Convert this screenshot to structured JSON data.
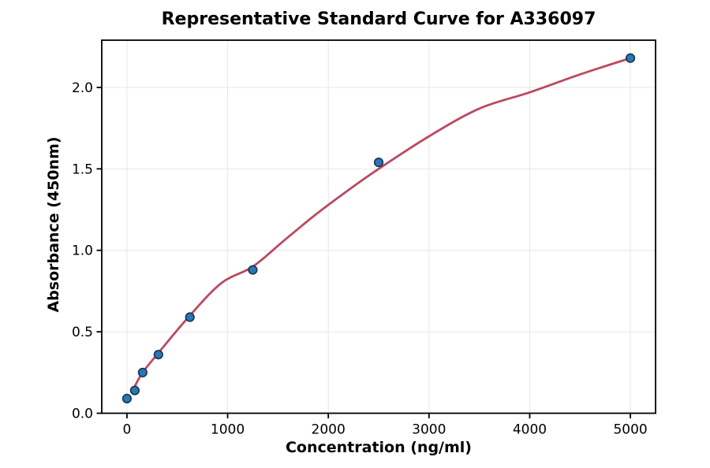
{
  "chart_data": {
    "type": "scatter",
    "title": "Representative Standard Curve for A336097",
    "xlabel": "Concentration (ng/ml)",
    "ylabel": "Absorbance (450nm)",
    "xlim": [
      -250,
      5250
    ],
    "ylim": [
      0,
      2.29
    ],
    "x_ticks": [
      0,
      1000,
      2000,
      3000,
      4000,
      5000
    ],
    "x_tick_labels": [
      "0",
      "1000",
      "2000",
      "3000",
      "4000",
      "5000"
    ],
    "y_ticks": [
      0,
      0.5,
      1,
      1.5,
      2
    ],
    "y_tick_labels": [
      "0.0",
      "0.5",
      "1.0",
      "1.5",
      "2.0"
    ],
    "grid": true,
    "legend": "none",
    "series": [
      {
        "name": "standard-points",
        "kind": "scatter",
        "points": [
          [
            0,
            0.09
          ],
          [
            78.1,
            0.14
          ],
          [
            156.2,
            0.25
          ],
          [
            312.5,
            0.36
          ],
          [
            625,
            0.59
          ],
          [
            1250,
            0.88
          ],
          [
            2500,
            1.54
          ],
          [
            5000,
            2.18
          ]
        ]
      },
      {
        "name": "fit-curve",
        "kind": "line",
        "points": [
          [
            78,
            0.165
          ],
          [
            156,
            0.25
          ],
          [
            312,
            0.37
          ],
          [
            625,
            0.6
          ],
          [
            940,
            0.8
          ],
          [
            1250,
            0.9
          ],
          [
            1560,
            1.06
          ],
          [
            1875,
            1.22
          ],
          [
            2200,
            1.37
          ],
          [
            2500,
            1.5
          ],
          [
            3000,
            1.7
          ],
          [
            3500,
            1.87
          ],
          [
            4000,
            1.97
          ],
          [
            4500,
            2.08
          ],
          [
            5000,
            2.18
          ]
        ]
      }
    ],
    "colors": {
      "marker_fill": "#2b77b3",
      "marker_edge": "#16324f",
      "curve": "#bb4a60",
      "grid": "#e7e7e7",
      "spine": "#000000",
      "text": "#000000",
      "background": "#ffffff"
    }
  }
}
